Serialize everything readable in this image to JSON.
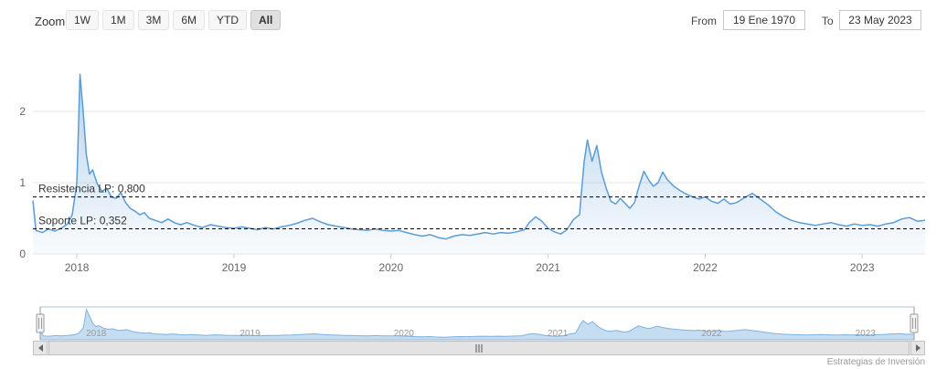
{
  "header": {
    "zoom_label": "Zoom",
    "range_buttons": [
      {
        "label": "1W",
        "selected": false
      },
      {
        "label": "1M",
        "selected": false
      },
      {
        "label": "3M",
        "selected": false
      },
      {
        "label": "6M",
        "selected": false
      },
      {
        "label": "YTD",
        "selected": false
      },
      {
        "label": "All",
        "selected": true
      }
    ],
    "from_label": "From",
    "from_value": "19 Ene 1970",
    "to_label": "To",
    "to_value": "23 May 2023"
  },
  "chart_data": {
    "type": "area",
    "title": "",
    "xlabel": "",
    "ylabel": "",
    "xlim": [
      2017.72,
      2023.4
    ],
    "ylim": [
      0,
      2.6
    ],
    "yticks": [
      0,
      1,
      2
    ],
    "xticks": [
      2018,
      2019,
      2020,
      2021,
      2022,
      2023
    ],
    "grid": true,
    "legend": "none",
    "plot_lines": [
      {
        "value": 0.8,
        "label": "Resistencia LP: 0,800"
      },
      {
        "value": 0.352,
        "label": "Soporte LP: 0,352"
      }
    ],
    "colors": {
      "line": "#5b9cd6",
      "fill_start": "rgba(91,156,214,0.45)",
      "fill_end": "rgba(91,156,214,0.04)",
      "navigator_fill": "rgba(91,156,214,0.35)",
      "navigator_line": "#7fb2dd",
      "plot_line": "#000000",
      "grid_line": "#e6e6e6"
    },
    "points": [
      [
        2017.72,
        0.75
      ],
      [
        2017.74,
        0.33
      ],
      [
        2017.78,
        0.3
      ],
      [
        2017.82,
        0.35
      ],
      [
        2017.86,
        0.32
      ],
      [
        2017.9,
        0.36
      ],
      [
        2017.94,
        0.42
      ],
      [
        2017.97,
        0.55
      ],
      [
        2018.0,
        1.0
      ],
      [
        2018.02,
        2.52
      ],
      [
        2018.04,
        2.0
      ],
      [
        2018.06,
        1.4
      ],
      [
        2018.08,
        1.12
      ],
      [
        2018.1,
        1.18
      ],
      [
        2018.13,
        0.98
      ],
      [
        2018.16,
        0.88
      ],
      [
        2018.19,
        0.92
      ],
      [
        2018.22,
        0.8
      ],
      [
        2018.25,
        0.78
      ],
      [
        2018.28,
        0.86
      ],
      [
        2018.31,
        0.72
      ],
      [
        2018.34,
        0.64
      ],
      [
        2018.37,
        0.6
      ],
      [
        2018.4,
        0.55
      ],
      [
        2018.43,
        0.58
      ],
      [
        2018.46,
        0.5
      ],
      [
        2018.5,
        0.47
      ],
      [
        2018.54,
        0.44
      ],
      [
        2018.58,
        0.49
      ],
      [
        2018.62,
        0.44
      ],
      [
        2018.66,
        0.41
      ],
      [
        2018.7,
        0.44
      ],
      [
        2018.75,
        0.4
      ],
      [
        2018.8,
        0.37
      ],
      [
        2018.85,
        0.41
      ],
      [
        2018.9,
        0.39
      ],
      [
        2018.95,
        0.37
      ],
      [
        2019.0,
        0.36
      ],
      [
        2019.05,
        0.38
      ],
      [
        2019.1,
        0.36
      ],
      [
        2019.15,
        0.34
      ],
      [
        2019.2,
        0.37
      ],
      [
        2019.25,
        0.35
      ],
      [
        2019.3,
        0.38
      ],
      [
        2019.35,
        0.4
      ],
      [
        2019.4,
        0.43
      ],
      [
        2019.45,
        0.47
      ],
      [
        2019.5,
        0.5
      ],
      [
        2019.55,
        0.45
      ],
      [
        2019.6,
        0.41
      ],
      [
        2019.65,
        0.39
      ],
      [
        2019.7,
        0.37
      ],
      [
        2019.75,
        0.35
      ],
      [
        2019.8,
        0.34
      ],
      [
        2019.85,
        0.33
      ],
      [
        2019.9,
        0.35
      ],
      [
        2019.95,
        0.33
      ],
      [
        2020.0,
        0.32
      ],
      [
        2020.05,
        0.33
      ],
      [
        2020.1,
        0.3
      ],
      [
        2020.15,
        0.27
      ],
      [
        2020.2,
        0.25
      ],
      [
        2020.25,
        0.27
      ],
      [
        2020.3,
        0.23
      ],
      [
        2020.35,
        0.21
      ],
      [
        2020.4,
        0.25
      ],
      [
        2020.45,
        0.27
      ],
      [
        2020.5,
        0.26
      ],
      [
        2020.55,
        0.28
      ],
      [
        2020.6,
        0.3
      ],
      [
        2020.65,
        0.28
      ],
      [
        2020.7,
        0.3
      ],
      [
        2020.75,
        0.29
      ],
      [
        2020.8,
        0.31
      ],
      [
        2020.85,
        0.34
      ],
      [
        2020.88,
        0.44
      ],
      [
        2020.92,
        0.52
      ],
      [
        2020.96,
        0.46
      ],
      [
        2021.0,
        0.36
      ],
      [
        2021.04,
        0.31
      ],
      [
        2021.08,
        0.28
      ],
      [
        2021.12,
        0.34
      ],
      [
        2021.16,
        0.48
      ],
      [
        2021.2,
        0.55
      ],
      [
        2021.23,
        1.3
      ],
      [
        2021.25,
        1.6
      ],
      [
        2021.28,
        1.3
      ],
      [
        2021.31,
        1.52
      ],
      [
        2021.34,
        1.15
      ],
      [
        2021.37,
        0.92
      ],
      [
        2021.4,
        0.74
      ],
      [
        2021.43,
        0.7
      ],
      [
        2021.46,
        0.78
      ],
      [
        2021.49,
        0.71
      ],
      [
        2021.52,
        0.64
      ],
      [
        2021.55,
        0.72
      ],
      [
        2021.58,
        0.96
      ],
      [
        2021.61,
        1.16
      ],
      [
        2021.64,
        1.04
      ],
      [
        2021.67,
        0.95
      ],
      [
        2021.7,
        1.0
      ],
      [
        2021.73,
        1.15
      ],
      [
        2021.76,
        1.04
      ],
      [
        2021.8,
        0.95
      ],
      [
        2021.84,
        0.89
      ],
      [
        2021.88,
        0.84
      ],
      [
        2021.92,
        0.8
      ],
      [
        2021.96,
        0.77
      ],
      [
        2022.0,
        0.8
      ],
      [
        2022.04,
        0.74
      ],
      [
        2022.08,
        0.71
      ],
      [
        2022.12,
        0.77
      ],
      [
        2022.16,
        0.7
      ],
      [
        2022.2,
        0.72
      ],
      [
        2022.25,
        0.79
      ],
      [
        2022.3,
        0.85
      ],
      [
        2022.35,
        0.77
      ],
      [
        2022.4,
        0.69
      ],
      [
        2022.45,
        0.59
      ],
      [
        2022.5,
        0.52
      ],
      [
        2022.55,
        0.47
      ],
      [
        2022.6,
        0.44
      ],
      [
        2022.65,
        0.42
      ],
      [
        2022.7,
        0.4
      ],
      [
        2022.75,
        0.42
      ],
      [
        2022.8,
        0.44
      ],
      [
        2022.85,
        0.41
      ],
      [
        2022.9,
        0.39
      ],
      [
        2022.95,
        0.42
      ],
      [
        2023.0,
        0.4
      ],
      [
        2023.05,
        0.41
      ],
      [
        2023.1,
        0.39
      ],
      [
        2023.15,
        0.42
      ],
      [
        2023.2,
        0.44
      ],
      [
        2023.25,
        0.49
      ],
      [
        2023.3,
        0.51
      ],
      [
        2023.35,
        0.46
      ],
      [
        2023.4,
        0.47
      ]
    ]
  },
  "credits": {
    "text": "Estrategias de Inversión"
  }
}
